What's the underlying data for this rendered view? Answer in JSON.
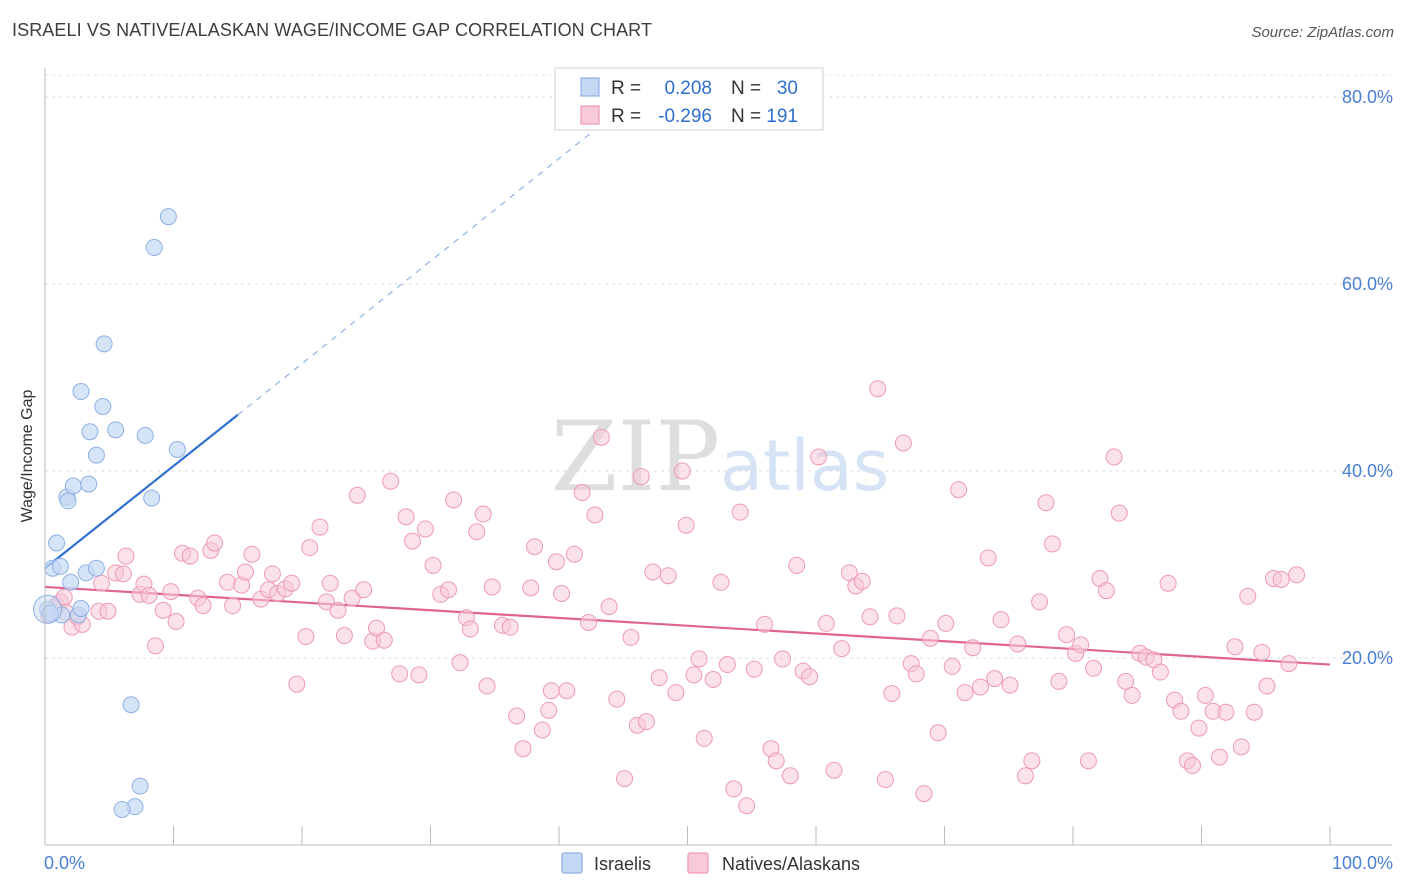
{
  "header": {
    "title": "ISRAELI VS NATIVE/ALASKAN WAGE/INCOME GAP CORRELATION CHART",
    "source": "Source: ZipAtlas.com"
  },
  "watermark": "ZIPatlas",
  "colors": {
    "blue_fill": "#c5d8f3",
    "blue_stroke": "#8fb1e4",
    "blue_line": "#2f6fd0",
    "pink_fill": "#f8c9d8",
    "pink_stroke": "#ee9ab6",
    "pink_line": "#e0648f",
    "tick_text": "#4a7fd4"
  },
  "legend": {
    "rows": [
      {
        "r_label": "R =",
        "r_value": "0.208",
        "n_label": "N =",
        "n_value": "30"
      },
      {
        "r_label": "R =",
        "r_value": "-0.296",
        "n_label": "N =",
        "n_value": "191"
      }
    ]
  },
  "chart_data": {
    "type": "scatter",
    "title": "ISRAELI VS NATIVE/ALASKAN WAGE/INCOME GAP CORRELATION CHART",
    "xlabel": "",
    "ylabel": "Wage/Income Gap",
    "xlim": [
      0,
      100
    ],
    "ylim": [
      0,
      80
    ],
    "x_tick_labels": [
      "0.0%",
      "100.0%"
    ],
    "y_ticks": [
      20,
      40,
      60,
      80
    ],
    "y_tick_labels": [
      "20.0%",
      "40.0%",
      "60.0%",
      "80.0%"
    ],
    "grid": true,
    "legend_position": "top-center",
    "series": [
      {
        "name": "Israelis",
        "color": "#8fb1e4",
        "points": [
          [
            0.2,
            25.2
          ],
          [
            0.6,
            29.6
          ],
          [
            0.9,
            32.3
          ],
          [
            1.2,
            29.8
          ],
          [
            1.3,
            24.6
          ],
          [
            1.7,
            37.2
          ],
          [
            1.8,
            36.8
          ],
          [
            2.0,
            28.1
          ],
          [
            2.2,
            38.4
          ],
          [
            2.6,
            24.6
          ],
          [
            2.8,
            25.3
          ],
          [
            2.8,
            48.5
          ],
          [
            3.2,
            29.1
          ],
          [
            3.4,
            38.6
          ],
          [
            3.5,
            44.2
          ],
          [
            4.0,
            41.7
          ],
          [
            4.0,
            29.6
          ],
          [
            4.5,
            46.9
          ],
          [
            4.6,
            53.6
          ],
          [
            5.5,
            44.4
          ],
          [
            6.7,
            15.0
          ],
          [
            7.4,
            6.3
          ],
          [
            7.0,
            4.1
          ],
          [
            6.0,
            3.8
          ],
          [
            7.8,
            43.8
          ],
          [
            8.3,
            37.1
          ],
          [
            8.5,
            63.9
          ],
          [
            9.6,
            67.2
          ],
          [
            10.3,
            42.3
          ],
          [
            0.4,
            24.8
          ]
        ],
        "trend": {
          "x": [
            0,
            15
          ],
          "y": [
            29.6,
            46.0
          ]
        },
        "trend_extended": {
          "x": [
            15,
            45
          ],
          "y": [
            46.0,
            78.9
          ]
        }
      },
      {
        "name": "Natives/Alaskans",
        "color": "#ee9ab6",
        "points": [
          [
            0.9,
            25.6
          ],
          [
            1.2,
            26.0
          ],
          [
            1.5,
            26.5
          ],
          [
            1.6,
            24.9
          ],
          [
            2.1,
            23.3
          ],
          [
            2.5,
            24.4
          ],
          [
            2.9,
            23.6
          ],
          [
            4.2,
            25.0
          ],
          [
            4.4,
            28.0
          ],
          [
            4.9,
            25.0
          ],
          [
            5.5,
            29.1
          ],
          [
            6.1,
            29.0
          ],
          [
            6.3,
            30.9
          ],
          [
            7.4,
            26.8
          ],
          [
            7.7,
            27.9
          ],
          [
            8.1,
            26.7
          ],
          [
            8.6,
            21.3
          ],
          [
            9.2,
            25.1
          ],
          [
            9.8,
            27.1
          ],
          [
            10.2,
            23.9
          ],
          [
            10.7,
            31.2
          ],
          [
            11.3,
            30.9
          ],
          [
            11.9,
            26.4
          ],
          [
            12.3,
            25.6
          ],
          [
            12.9,
            31.5
          ],
          [
            13.2,
            32.3
          ],
          [
            14.2,
            28.1
          ],
          [
            14.6,
            25.6
          ],
          [
            15.3,
            27.8
          ],
          [
            15.6,
            29.2
          ],
          [
            16.1,
            31.1
          ],
          [
            16.8,
            26.3
          ],
          [
            17.4,
            27.3
          ],
          [
            17.7,
            29.0
          ],
          [
            18.1,
            26.9
          ],
          [
            18.7,
            27.4
          ],
          [
            19.2,
            28.0
          ],
          [
            19.6,
            17.2
          ],
          [
            20.3,
            22.3
          ],
          [
            20.6,
            31.8
          ],
          [
            21.4,
            34.0
          ],
          [
            21.9,
            26.0
          ],
          [
            22.2,
            28.0
          ],
          [
            22.8,
            25.1
          ],
          [
            23.3,
            22.4
          ],
          [
            23.9,
            26.4
          ],
          [
            24.3,
            37.4
          ],
          [
            24.8,
            27.3
          ],
          [
            25.5,
            21.8
          ],
          [
            25.8,
            23.2
          ],
          [
            26.4,
            21.9
          ],
          [
            26.9,
            38.9
          ],
          [
            27.6,
            18.3
          ],
          [
            28.1,
            35.1
          ],
          [
            28.6,
            32.5
          ],
          [
            29.1,
            18.2
          ],
          [
            29.6,
            33.8
          ],
          [
            30.2,
            29.9
          ],
          [
            30.8,
            26.8
          ],
          [
            31.4,
            27.3
          ],
          [
            31.8,
            36.9
          ],
          [
            32.3,
            19.5
          ],
          [
            32.8,
            24.3
          ],
          [
            33.1,
            23.1
          ],
          [
            33.6,
            33.5
          ],
          [
            34.1,
            35.4
          ],
          [
            34.4,
            17.0
          ],
          [
            34.8,
            27.6
          ],
          [
            35.6,
            23.5
          ],
          [
            36.2,
            23.3
          ],
          [
            36.7,
            13.8
          ],
          [
            37.2,
            10.3
          ],
          [
            37.8,
            27.5
          ],
          [
            38.1,
            31.9
          ],
          [
            38.7,
            12.3
          ],
          [
            39.2,
            14.4
          ],
          [
            39.4,
            16.5
          ],
          [
            39.8,
            30.3
          ],
          [
            40.2,
            26.9
          ],
          [
            40.6,
            16.5
          ],
          [
            41.2,
            31.1
          ],
          [
            41.8,
            37.7
          ],
          [
            42.3,
            23.8
          ],
          [
            42.8,
            35.3
          ],
          [
            43.3,
            43.6
          ],
          [
            43.9,
            25.5
          ],
          [
            44.5,
            15.6
          ],
          [
            45.1,
            7.1
          ],
          [
            45.6,
            22.2
          ],
          [
            46.1,
            12.8
          ],
          [
            46.4,
            39.4
          ],
          [
            46.8,
            13.2
          ],
          [
            47.3,
            29.2
          ],
          [
            47.8,
            17.9
          ],
          [
            48.5,
            28.8
          ],
          [
            49.1,
            16.3
          ],
          [
            49.6,
            40.0
          ],
          [
            49.9,
            34.2
          ],
          [
            50.5,
            18.2
          ],
          [
            50.9,
            19.9
          ],
          [
            51.3,
            11.4
          ],
          [
            52.0,
            17.7
          ],
          [
            52.6,
            28.1
          ],
          [
            53.1,
            19.3
          ],
          [
            53.6,
            6.0
          ],
          [
            54.1,
            35.6
          ],
          [
            54.6,
            4.2
          ],
          [
            55.2,
            18.8
          ],
          [
            56.0,
            23.6
          ],
          [
            56.5,
            10.3
          ],
          [
            56.9,
            9.0
          ],
          [
            57.4,
            19.9
          ],
          [
            58.0,
            7.4
          ],
          [
            58.5,
            29.9
          ],
          [
            59.0,
            18.6
          ],
          [
            59.5,
            18.0
          ],
          [
            60.2,
            41.5
          ],
          [
            60.8,
            23.7
          ],
          [
            61.4,
            8.0
          ],
          [
            62.0,
            21.0
          ],
          [
            62.6,
            29.1
          ],
          [
            63.1,
            27.7
          ],
          [
            63.6,
            28.2
          ],
          [
            64.2,
            24.4
          ],
          [
            64.8,
            48.8
          ],
          [
            65.4,
            7.0
          ],
          [
            65.9,
            16.2
          ],
          [
            66.3,
            24.5
          ],
          [
            66.8,
            43.0
          ],
          [
            67.4,
            19.4
          ],
          [
            67.8,
            18.3
          ],
          [
            68.4,
            5.5
          ],
          [
            68.9,
            22.1
          ],
          [
            69.5,
            12.0
          ],
          [
            70.1,
            23.7
          ],
          [
            70.6,
            19.1
          ],
          [
            71.1,
            38.0
          ],
          [
            71.6,
            16.3
          ],
          [
            72.2,
            21.1
          ],
          [
            72.8,
            16.9
          ],
          [
            73.4,
            30.7
          ],
          [
            73.9,
            17.8
          ],
          [
            74.4,
            24.1
          ],
          [
            75.1,
            17.1
          ],
          [
            75.7,
            21.5
          ],
          [
            76.3,
            7.4
          ],
          [
            76.8,
            9.0
          ],
          [
            77.4,
            26.0
          ],
          [
            77.9,
            36.6
          ],
          [
            78.4,
            32.2
          ],
          [
            78.9,
            17.5
          ],
          [
            79.5,
            22.5
          ],
          [
            80.2,
            20.5
          ],
          [
            80.6,
            21.4
          ],
          [
            81.2,
            9.0
          ],
          [
            81.6,
            18.9
          ],
          [
            82.1,
            28.5
          ],
          [
            82.6,
            27.2
          ],
          [
            83.2,
            41.5
          ],
          [
            83.6,
            35.5
          ],
          [
            84.1,
            17.5
          ],
          [
            84.6,
            16.0
          ],
          [
            85.2,
            20.5
          ],
          [
            85.7,
            20.1
          ],
          [
            86.3,
            19.8
          ],
          [
            86.8,
            18.5
          ],
          [
            87.4,
            28.0
          ],
          [
            87.9,
            15.5
          ],
          [
            88.4,
            14.3
          ],
          [
            88.9,
            9.0
          ],
          [
            89.3,
            8.5
          ],
          [
            89.8,
            12.5
          ],
          [
            90.3,
            16.0
          ],
          [
            90.9,
            14.3
          ],
          [
            91.4,
            9.4
          ],
          [
            91.9,
            14.2
          ],
          [
            92.6,
            21.2
          ],
          [
            93.1,
            10.5
          ],
          [
            93.6,
            26.6
          ],
          [
            94.1,
            14.2
          ],
          [
            94.7,
            20.6
          ],
          [
            95.1,
            17.0
          ],
          [
            95.6,
            28.5
          ],
          [
            96.2,
            28.4
          ],
          [
            96.8,
            19.4
          ],
          [
            97.4,
            28.9
          ],
          [
            0.3,
            24.6
          ]
        ],
        "trend": {
          "x": [
            0,
            100
          ],
          "y": [
            27.6,
            19.3
          ]
        }
      }
    ]
  },
  "bottom_legend": [
    {
      "label": "Israelis"
    },
    {
      "label": "Natives/Alaskans"
    }
  ]
}
